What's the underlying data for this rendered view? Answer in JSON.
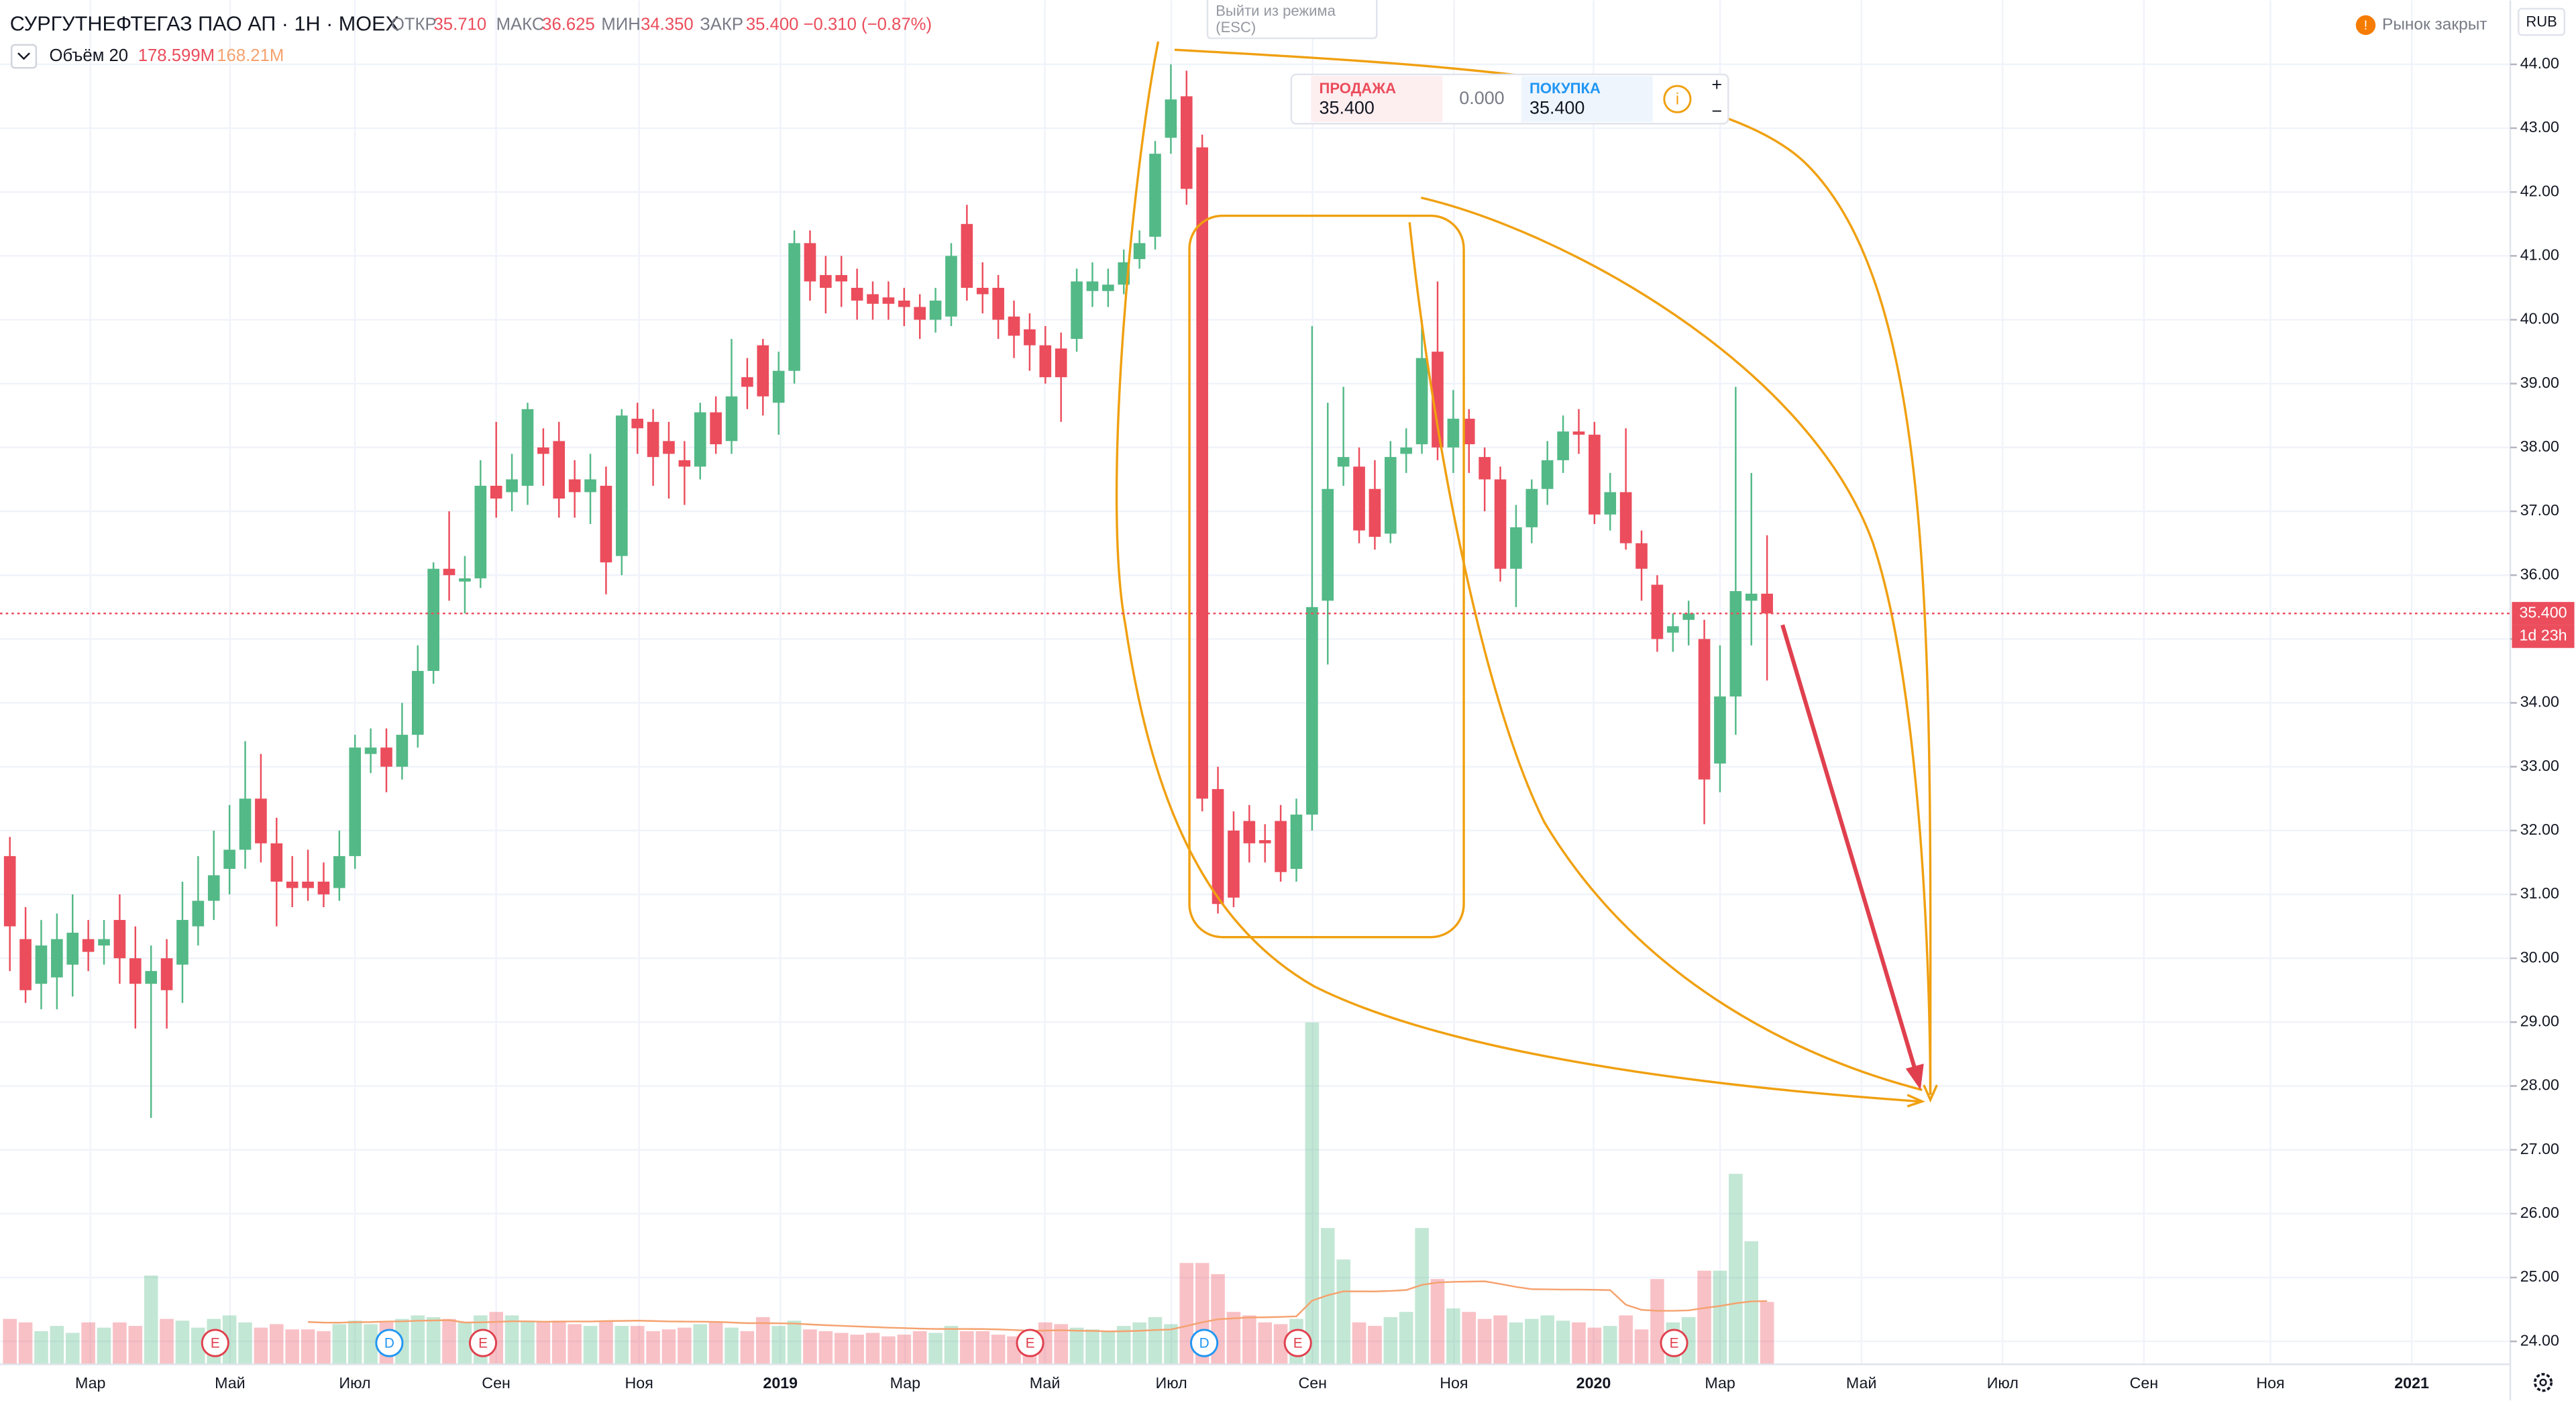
{
  "header": {
    "symbol": "СУРГУТНЕФТЕГАЗ ПАО АП · 1Н · MOEX",
    "open_label": "ОТКР",
    "open": "35.710",
    "high_label": "МАКС",
    "high": "36.625",
    "low_label": "МИН",
    "low": "34.350",
    "close_label": "ЗАКР",
    "close": "35.400",
    "change": "−0.310 (−0.87%)",
    "volume_label": "Объём 20",
    "volume": "178.599M",
    "volume_ma": "168.21M",
    "market_status": "Рынок закрыт",
    "currency": "RUB",
    "exit_mode": [
      "Выйти из режима",
      "(ESC)"
    ]
  },
  "order_panel": {
    "sell_label": "ПРОДАЖА",
    "sell": "35.400",
    "spread": "0.000",
    "buy_label": "ПОКУПКА",
    "buy": "35.400",
    "info": "i",
    "plus": "+",
    "minus": "−"
  },
  "chart_data": {
    "type": "candlestick",
    "ma_period": 20,
    "up_color": "#53b987",
    "down_color": "#eb4d5c",
    "grid": true,
    "ylim": [
      23.64,
      45.0
    ],
    "yticks": [
      {
        "value": 24,
        "label": "24.00"
      },
      {
        "value": 25,
        "label": "25.00"
      },
      {
        "value": 26,
        "label": "26.00"
      },
      {
        "value": 27,
        "label": "27.00"
      },
      {
        "value": 28,
        "label": "28.00"
      },
      {
        "value": 29,
        "label": "29.00"
      },
      {
        "value": 30,
        "label": "30.00"
      },
      {
        "value": 31,
        "label": "31.00"
      },
      {
        "value": 32,
        "label": "32.00"
      },
      {
        "value": 33,
        "label": "33.00"
      },
      {
        "value": 34,
        "label": "34.00"
      },
      {
        "value": 35,
        "label": "35.00"
      },
      {
        "value": 36,
        "label": "36.00"
      },
      {
        "value": 37,
        "label": "37.00"
      },
      {
        "value": 38,
        "label": "38.00"
      },
      {
        "value": 39,
        "label": "39.00"
      },
      {
        "value": 40,
        "label": "40.00"
      },
      {
        "value": 41,
        "label": "41.00"
      },
      {
        "value": 42,
        "label": "42.00"
      },
      {
        "value": 43,
        "label": "43.00"
      },
      {
        "value": 44,
        "label": "44.00"
      }
    ],
    "xtick_labels": [
      "Мар",
      "Май",
      "Июл",
      "Сен",
      "Ноя",
      "2019",
      "Мар",
      "Май",
      "Июл",
      "Сен",
      "Ноя",
      "2020",
      "Мар",
      "Май",
      "Июл",
      "Сен",
      "Ноя",
      "2021"
    ],
    "last_price": {
      "value": 35.4,
      "label": "35.400",
      "countdown": "1d 23h"
    },
    "events": [
      {
        "label": "E"
      },
      {
        "label": "D"
      },
      {
        "label": "E"
      },
      {
        "label": "E"
      },
      {
        "label": "D"
      },
      {
        "label": "E"
      },
      {
        "label": "E"
      }
    ],
    "open": [
      31.6,
      30.3,
      29.6,
      29.7,
      29.9,
      30.3,
      30.2,
      30.6,
      30.0,
      29.6,
      30.0,
      29.9,
      30.5,
      30.9,
      31.4,
      31.7,
      32.5,
      31.8,
      31.2,
      31.2,
      31.2,
      31.1,
      31.6,
      33.2,
      33.3,
      33.0,
      33.5,
      34.5,
      36.1,
      35.9,
      35.95,
      37.4,
      37.3,
      37.4,
      38.0,
      38.1,
      37.5,
      37.3,
      37.4,
      36.3,
      38.45,
      38.4,
      38.1,
      37.8,
      37.7,
      38.55,
      38.1,
      39.1,
      39.6,
      38.7,
      39.2,
      41.2,
      40.7,
      40.7,
      40.5,
      40.4,
      40.35,
      40.3,
      40.2,
      40.0,
      40.05,
      41.5,
      40.5,
      40.5,
      40.05,
      39.85,
      39.6,
      39.55,
      39.7,
      40.45,
      40.45,
      40.55,
      40.95,
      41.3,
      42.85,
      43.5,
      42.7,
      32.65,
      32.0,
      32.15,
      31.85,
      32.15,
      31.4,
      32.25,
      35.6,
      37.7,
      37.7,
      37.35,
      36.65,
      37.9,
      38.05,
      39.5,
      38.0,
      38.45,
      37.85,
      37.5,
      36.1,
      36.75,
      37.35,
      37.8,
      38.25,
      38.2,
      36.95,
      37.3,
      36.5,
      35.85,
      35.1,
      35.3,
      35.0,
      33.05,
      34.1,
      35.6,
      35.71
    ],
    "high": [
      31.9,
      30.8,
      30.6,
      30.7,
      31.0,
      30.6,
      30.6,
      31.0,
      30.5,
      30.2,
      30.3,
      31.2,
      31.6,
      32.0,
      32.4,
      33.4,
      33.2,
      32.2,
      31.6,
      31.7,
      31.5,
      32.0,
      33.5,
      33.6,
      33.6,
      34.0,
      34.9,
      36.2,
      37.0,
      36.3,
      37.8,
      38.4,
      37.9,
      38.7,
      38.3,
      38.4,
      37.8,
      37.9,
      37.7,
      38.6,
      38.7,
      38.6,
      38.4,
      38.1,
      38.7,
      38.8,
      39.7,
      39.4,
      39.7,
      39.5,
      41.4,
      41.4,
      41.0,
      41.0,
      40.8,
      40.6,
      40.6,
      40.5,
      40.4,
      40.5,
      41.2,
      41.8,
      40.9,
      40.7,
      40.3,
      40.1,
      39.9,
      39.8,
      40.8,
      40.9,
      40.8,
      41.1,
      41.4,
      42.8,
      44.0,
      43.9,
      42.9,
      33.0,
      32.3,
      32.4,
      32.1,
      32.4,
      32.5,
      39.9,
      38.7,
      38.95,
      38.0,
      37.8,
      38.1,
      38.3,
      40.0,
      40.6,
      38.9,
      38.6,
      38.0,
      37.7,
      37.1,
      37.5,
      38.1,
      38.5,
      38.6,
      38.4,
      37.6,
      38.3,
      36.7,
      36.0,
      35.4,
      35.6,
      35.3,
      34.9,
      38.95,
      37.6,
      36.625
    ],
    "low": [
      29.8,
      29.3,
      29.2,
      29.2,
      29.4,
      29.8,
      29.9,
      29.6,
      28.9,
      27.5,
      28.9,
      29.3,
      30.2,
      30.6,
      31.0,
      31.4,
      31.5,
      30.5,
      30.8,
      30.9,
      30.8,
      30.9,
      31.4,
      32.9,
      32.6,
      32.8,
      33.3,
      34.3,
      35.6,
      35.4,
      35.8,
      36.9,
      37.0,
      37.1,
      37.4,
      36.9,
      36.9,
      36.8,
      35.7,
      36.0,
      37.9,
      37.4,
      37.2,
      37.1,
      37.5,
      37.9,
      37.9,
      38.6,
      38.5,
      38.2,
      39.0,
      40.3,
      40.1,
      40.2,
      40.0,
      40.0,
      40.0,
      39.9,
      39.7,
      39.8,
      39.9,
      40.3,
      40.1,
      39.7,
      39.4,
      39.2,
      39.0,
      38.4,
      39.5,
      40.2,
      40.2,
      40.4,
      40.8,
      41.1,
      42.6,
      41.8,
      32.3,
      30.7,
      30.8,
      31.5,
      31.5,
      31.2,
      31.2,
      32.0,
      34.6,
      37.4,
      36.5,
      36.4,
      36.5,
      37.6,
      37.9,
      37.8,
      37.6,
      37.6,
      37.0,
      35.9,
      35.5,
      36.5,
      37.1,
      37.6,
      37.9,
      36.8,
      36.7,
      36.4,
      35.6,
      34.8,
      34.8,
      34.9,
      32.1,
      32.6,
      33.5,
      34.9,
      34.35
    ],
    "close": [
      30.5,
      29.5,
      30.2,
      30.3,
      30.4,
      30.1,
      30.3,
      30.0,
      29.6,
      29.8,
      29.5,
      30.6,
      30.9,
      31.3,
      31.7,
      32.5,
      31.8,
      31.2,
      31.1,
      31.1,
      31.0,
      31.6,
      33.3,
      33.3,
      33.0,
      33.5,
      34.5,
      36.1,
      36.0,
      35.95,
      37.4,
      37.2,
      37.5,
      38.6,
      37.9,
      37.2,
      37.3,
      37.5,
      36.2,
      38.5,
      38.3,
      37.85,
      37.9,
      37.7,
      38.55,
      38.05,
      38.8,
      38.95,
      38.8,
      39.2,
      41.2,
      40.6,
      40.5,
      40.6,
      40.3,
      40.25,
      40.25,
      40.2,
      40.0,
      40.3,
      41.0,
      40.5,
      40.4,
      40.0,
      39.75,
      39.6,
      39.1,
      39.1,
      40.6,
      40.6,
      40.55,
      40.9,
      41.2,
      42.6,
      43.45,
      42.05,
      32.5,
      30.85,
      30.95,
      31.8,
      31.8,
      31.35,
      32.25,
      35.5,
      37.35,
      37.85,
      36.7,
      36.6,
      37.85,
      38.0,
      39.4,
      38.0,
      38.45,
      38.05,
      37.5,
      36.1,
      36.75,
      37.35,
      37.8,
      38.25,
      38.2,
      36.95,
      37.3,
      36.5,
      36.1,
      35.0,
      35.2,
      35.4,
      32.8,
      34.1,
      35.75,
      35.71,
      35.4
    ],
    "volume": [
      130,
      120,
      95,
      110,
      90,
      120,
      105,
      120,
      110,
      254,
      130,
      125,
      105,
      130,
      140,
      120,
      105,
      115,
      100,
      100,
      95,
      115,
      125,
      115,
      120,
      130,
      140,
      135,
      130,
      120,
      140,
      150,
      140,
      125,
      120,
      125,
      115,
      110,
      125,
      110,
      110,
      95,
      100,
      105,
      115,
      120,
      105,
      95,
      135,
      110,
      125,
      100,
      95,
      90,
      85,
      90,
      80,
      85,
      95,
      90,
      110,
      95,
      95,
      85,
      80,
      75,
      120,
      115,
      105,
      100,
      95,
      110,
      120,
      135,
      115,
      290,
      290,
      258,
      150,
      140,
      120,
      115,
      130,
      978,
      390,
      300,
      120,
      110,
      135,
      150,
      390,
      244,
      160,
      150,
      130,
      140,
      120,
      130,
      140,
      125,
      120,
      105,
      110,
      140,
      100,
      244,
      120,
      135,
      268,
      268,
      545,
      352,
      178.599
    ]
  }
}
